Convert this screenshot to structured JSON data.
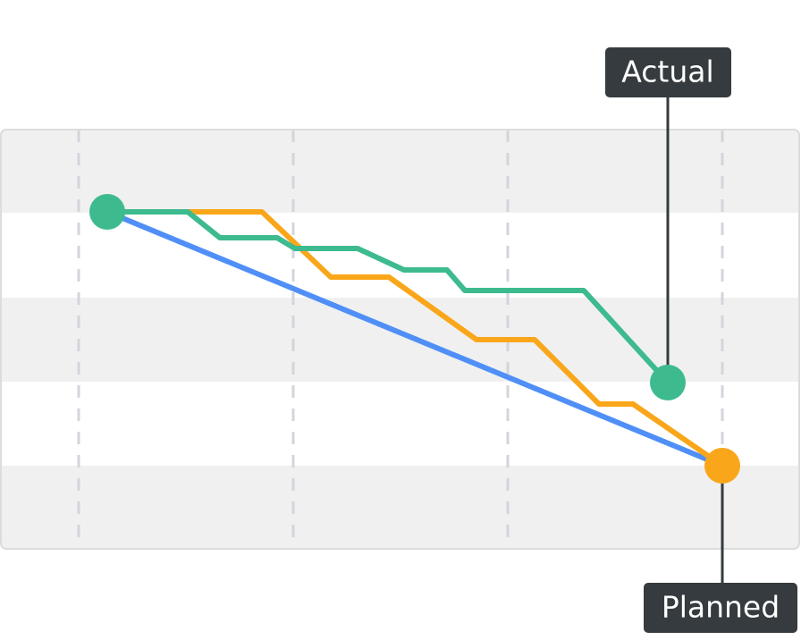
{
  "labels": {
    "actual": "Actual",
    "planned": "Planned"
  }
}
